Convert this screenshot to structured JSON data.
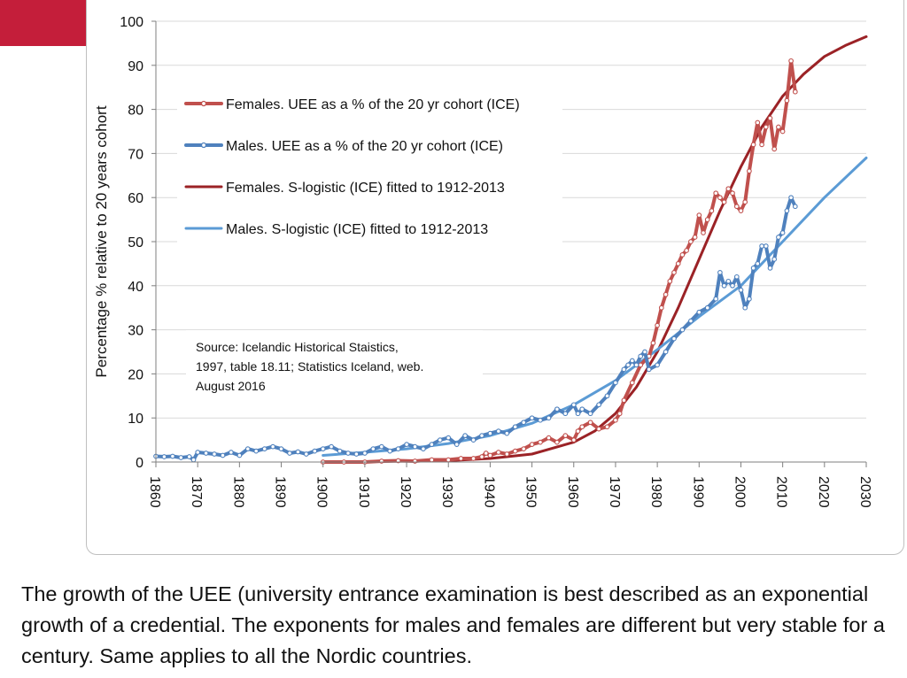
{
  "caption": "The growth of the UEE (university entrance examination is best described as an exponential growth of a credential. The exponents for males and females are different but very stable for a century. Same applies to all the Nordic countries.",
  "colors": {
    "accent": "#c41e3a",
    "females_observed": "#c0504d",
    "males_observed": "#4f81bd",
    "females_fit": "#9b2226",
    "males_fit": "#5b9bd5",
    "grid": "#d9d9d9"
  },
  "chart_data": {
    "type": "line",
    "title": "",
    "xlabel": "",
    "ylabel": "Percentage % relative to 20 years cohort",
    "xlim": [
      1860,
      2030
    ],
    "ylim": [
      0,
      100
    ],
    "x_ticks": [
      1860,
      1870,
      1880,
      1890,
      1900,
      1910,
      1920,
      1930,
      1940,
      1950,
      1960,
      1970,
      1980,
      1990,
      2000,
      2010,
      2020,
      2030
    ],
    "y_ticks": [
      0,
      10,
      20,
      30,
      40,
      50,
      60,
      70,
      80,
      90,
      100
    ],
    "grid": "horizontal",
    "source_note": [
      "Source: Icelandic Historical Staistics,",
      "1997,  table 18.11;  Statistics Iceland, web.",
      "August 2016"
    ],
    "series": [
      {
        "name": "Females. UEE as a % of the 20 yr cohort (ICE)",
        "style": "line-markers",
        "color_key": "females_observed",
        "points": [
          [
            1900,
            0
          ],
          [
            1905,
            0
          ],
          [
            1910,
            0
          ],
          [
            1914,
            0.2
          ],
          [
            1918,
            0.3
          ],
          [
            1922,
            0.2
          ],
          [
            1926,
            0.5
          ],
          [
            1930,
            0.5
          ],
          [
            1933,
            0.8
          ],
          [
            1936,
            0.8
          ],
          [
            1938,
            1.2
          ],
          [
            1939,
            2
          ],
          [
            1940,
            1.5
          ],
          [
            1942,
            2.2
          ],
          [
            1944,
            1.8
          ],
          [
            1946,
            2.5
          ],
          [
            1948,
            3
          ],
          [
            1950,
            4
          ],
          [
            1952,
            4.5
          ],
          [
            1954,
            5.5
          ],
          [
            1956,
            4.5
          ],
          [
            1958,
            6
          ],
          [
            1960,
            5
          ],
          [
            1961,
            7
          ],
          [
            1962,
            8
          ],
          [
            1964,
            9
          ],
          [
            1966,
            7.5
          ],
          [
            1968,
            8
          ],
          [
            1970,
            9.5
          ],
          [
            1971,
            11
          ],
          [
            1972,
            14
          ],
          [
            1974,
            18
          ],
          [
            1976,
            22
          ],
          [
            1978,
            24
          ],
          [
            1979,
            27
          ],
          [
            1980,
            31
          ],
          [
            1981,
            35
          ],
          [
            1982,
            38
          ],
          [
            1983,
            41
          ],
          [
            1984,
            43
          ],
          [
            1985,
            45
          ],
          [
            1986,
            47
          ],
          [
            1987,
            48
          ],
          [
            1988,
            50
          ],
          [
            1989,
            51
          ],
          [
            1990,
            56
          ],
          [
            1991,
            52
          ],
          [
            1992,
            55
          ],
          [
            1993,
            57
          ],
          [
            1994,
            61
          ],
          [
            1995,
            60
          ],
          [
            1996,
            59
          ],
          [
            1997,
            62
          ],
          [
            1998,
            61
          ],
          [
            1999,
            58
          ],
          [
            2000,
            57
          ],
          [
            2001,
            59
          ],
          [
            2002,
            66
          ],
          [
            2003,
            72
          ],
          [
            2004,
            77
          ],
          [
            2005,
            72
          ],
          [
            2006,
            76
          ],
          [
            2007,
            78
          ],
          [
            2008,
            71
          ],
          [
            2009,
            76
          ],
          [
            2010,
            75
          ],
          [
            2011,
            82
          ],
          [
            2012,
            91
          ],
          [
            2013,
            84
          ]
        ]
      },
      {
        "name": "Males. UEE as a % of the 20 yr cohort (ICE)",
        "style": "line-markers",
        "color_key": "males_observed",
        "points": [
          [
            1860,
            1.3
          ],
          [
            1862,
            1.2
          ],
          [
            1864,
            1.3
          ],
          [
            1866,
            1
          ],
          [
            1868,
            1.2
          ],
          [
            1869,
            0.5
          ],
          [
            1870,
            2.2
          ],
          [
            1872,
            2
          ],
          [
            1874,
            1.8
          ],
          [
            1876,
            1.5
          ],
          [
            1878,
            2.2
          ],
          [
            1880,
            1.5
          ],
          [
            1882,
            3
          ],
          [
            1884,
            2.5
          ],
          [
            1886,
            3
          ],
          [
            1888,
            3.5
          ],
          [
            1890,
            3
          ],
          [
            1892,
            2
          ],
          [
            1894,
            2.3
          ],
          [
            1896,
            1.8
          ],
          [
            1898,
            2.5
          ],
          [
            1900,
            3
          ],
          [
            1902,
            3.5
          ],
          [
            1904,
            2.5
          ],
          [
            1906,
            2
          ],
          [
            1908,
            1.8
          ],
          [
            1910,
            2
          ],
          [
            1912,
            3
          ],
          [
            1914,
            3.5
          ],
          [
            1916,
            2.5
          ],
          [
            1918,
            3
          ],
          [
            1920,
            4
          ],
          [
            1922,
            3.5
          ],
          [
            1924,
            3
          ],
          [
            1926,
            4
          ],
          [
            1928,
            5
          ],
          [
            1930,
            5.5
          ],
          [
            1932,
            4
          ],
          [
            1934,
            6
          ],
          [
            1936,
            5
          ],
          [
            1938,
            6
          ],
          [
            1940,
            6.5
          ],
          [
            1942,
            7
          ],
          [
            1944,
            6.5
          ],
          [
            1946,
            8
          ],
          [
            1948,
            9
          ],
          [
            1950,
            10
          ],
          [
            1952,
            9.5
          ],
          [
            1954,
            10
          ],
          [
            1956,
            12
          ],
          [
            1958,
            11
          ],
          [
            1960,
            13
          ],
          [
            1961,
            11
          ],
          [
            1962,
            12
          ],
          [
            1964,
            11
          ],
          [
            1966,
            13
          ],
          [
            1968,
            15
          ],
          [
            1970,
            18
          ],
          [
            1972,
            21
          ],
          [
            1973,
            22
          ],
          [
            1974,
            23
          ],
          [
            1975,
            22
          ],
          [
            1976,
            24
          ],
          [
            1977,
            25
          ],
          [
            1978,
            21
          ],
          [
            1980,
            22
          ],
          [
            1982,
            25
          ],
          [
            1984,
            28
          ],
          [
            1986,
            30
          ],
          [
            1988,
            32
          ],
          [
            1990,
            34
          ],
          [
            1992,
            35
          ],
          [
            1994,
            37
          ],
          [
            1995,
            43
          ],
          [
            1996,
            40
          ],
          [
            1997,
            41
          ],
          [
            1998,
            40
          ],
          [
            1999,
            42
          ],
          [
            2000,
            39
          ],
          [
            2001,
            35
          ],
          [
            2002,
            37
          ],
          [
            2003,
            44
          ],
          [
            2004,
            45
          ],
          [
            2005,
            49
          ],
          [
            2006,
            49
          ],
          [
            2007,
            44
          ],
          [
            2008,
            46
          ],
          [
            2009,
            51
          ],
          [
            2010,
            52
          ],
          [
            2011,
            57
          ],
          [
            2012,
            60
          ],
          [
            2013,
            58
          ]
        ]
      },
      {
        "name": "Females. S-logistic (ICE) fitted to 1912-2013",
        "style": "line",
        "color_key": "females_fit",
        "points": [
          [
            1900,
            0
          ],
          [
            1930,
            0.3
          ],
          [
            1940,
            0.8
          ],
          [
            1950,
            1.8
          ],
          [
            1960,
            4.5
          ],
          [
            1965,
            7
          ],
          [
            1970,
            11
          ],
          [
            1975,
            17
          ],
          [
            1980,
            25
          ],
          [
            1985,
            35
          ],
          [
            1990,
            46
          ],
          [
            1995,
            57
          ],
          [
            2000,
            67
          ],
          [
            2005,
            76
          ],
          [
            2010,
            83
          ],
          [
            2015,
            88
          ],
          [
            2020,
            92
          ],
          [
            2025,
            94.5
          ],
          [
            2030,
            96.5
          ]
        ]
      },
      {
        "name": "Males. S-logistic (ICE) fitted to 1912-2013",
        "style": "line",
        "color_key": "males_fit",
        "points": [
          [
            1900,
            1.5
          ],
          [
            1910,
            2.2
          ],
          [
            1920,
            3
          ],
          [
            1930,
            4.2
          ],
          [
            1940,
            6
          ],
          [
            1950,
            8.8
          ],
          [
            1960,
            13
          ],
          [
            1970,
            18.5
          ],
          [
            1975,
            22
          ],
          [
            1980,
            25.5
          ],
          [
            1990,
            33
          ],
          [
            2000,
            40
          ],
          [
            2010,
            50
          ],
          [
            2020,
            60
          ],
          [
            2030,
            69
          ]
        ]
      }
    ]
  }
}
